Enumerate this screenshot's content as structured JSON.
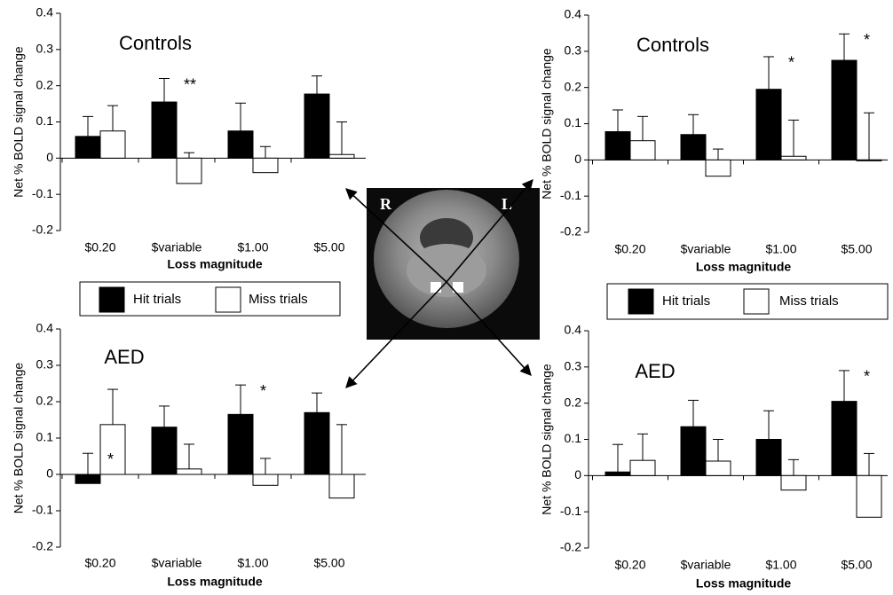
{
  "chart_data": [
    {
      "type": "bar",
      "title": "Controls",
      "x_label": "Loss magnitude",
      "y_label": "Net % BOLD signal change",
      "categories": [
        "$0.20",
        "$variable",
        "$1.00",
        "$5.00"
      ],
      "series": [
        {
          "name": "Hit trials",
          "color": "#000000",
          "values": [
            0.06,
            0.155,
            0.075,
            0.177
          ],
          "errors": [
            0.055,
            0.065,
            0.077,
            0.05
          ]
        },
        {
          "name": "Miss trials",
          "color": "#ffffff",
          "values": [
            0.075,
            -0.07,
            -0.04,
            0.01
          ],
          "errors": [
            0.07,
            0.015,
            0.032,
            0.09
          ]
        }
      ],
      "annotations": [
        {
          "text": "**",
          "category": "$variable"
        }
      ],
      "ylim": [
        -0.2,
        0.4
      ],
      "yticks": [
        -0.2,
        -0.1,
        0,
        0.1,
        0.2,
        0.3,
        0.4
      ]
    },
    {
      "type": "bar",
      "title": "Controls",
      "x_label": "Loss magnitude",
      "y_label": "Net % BOLD signal change",
      "categories": [
        "$0.20",
        "$variable",
        "$1.00",
        "$5.00"
      ],
      "series": [
        {
          "name": "Hit trials",
          "color": "#000000",
          "values": [
            0.078,
            0.07,
            0.195,
            0.275
          ],
          "errors": [
            0.06,
            0.055,
            0.09,
            0.073
          ]
        },
        {
          "name": "Miss trials",
          "color": "#ffffff",
          "values": [
            0.053,
            -0.045,
            0.01,
            0
          ],
          "errors": [
            0.067,
            0.03,
            0.1,
            0.13
          ]
        }
      ],
      "annotations": [
        {
          "text": "*",
          "category": "$1.00"
        },
        {
          "text": "*",
          "category": "$5.00"
        }
      ],
      "ylim": [
        -0.2,
        0.4
      ],
      "yticks": [
        -0.2,
        -0.1,
        0,
        0.1,
        0.2,
        0.3,
        0.4
      ]
    },
    {
      "type": "bar",
      "title": "AED",
      "x_label": "Loss magnitude",
      "y_label": "Net % BOLD signal change",
      "categories": [
        "$0.20",
        "$variable",
        "$1.00",
        "$5.00"
      ],
      "series": [
        {
          "name": "Hit trials",
          "color": "#000000",
          "values": [
            -0.025,
            0.13,
            0.165,
            0.17
          ],
          "errors": [
            0.058,
            0.058,
            0.081,
            0.054
          ]
        },
        {
          "name": "Miss trials",
          "color": "#ffffff",
          "values": [
            0.137,
            0.015,
            -0.03,
            -0.065
          ],
          "errors": [
            0.097,
            0.068,
            0.044,
            0.137
          ]
        }
      ],
      "annotations": [
        {
          "text": "*",
          "category": "$0.20"
        },
        {
          "text": "*",
          "category": "$1.00"
        }
      ],
      "ylim": [
        -0.2,
        0.4
      ],
      "yticks": [
        -0.2,
        -0.1,
        0,
        0.1,
        0.2,
        0.3,
        0.4
      ]
    },
    {
      "type": "bar",
      "title": "AED",
      "x_label": "Loss magnitude",
      "y_label": "Net % BOLD signal change",
      "categories": [
        "$0.20",
        "$variable",
        "$1.00",
        "$5.00"
      ],
      "series": [
        {
          "name": "Hit trials",
          "color": "#000000",
          "values": [
            0.01,
            0.135,
            0.1,
            0.205
          ],
          "errors": [
            0.076,
            0.073,
            0.079,
            0.085
          ]
        },
        {
          "name": "Miss trials",
          "color": "#ffffff",
          "values": [
            0.042,
            0.04,
            -0.04,
            -0.115
          ],
          "errors": [
            0.073,
            0.06,
            0.044,
            0.061
          ]
        }
      ],
      "annotations": [
        {
          "text": "*",
          "category": "$5.00"
        }
      ],
      "ylim": [
        -0.2,
        0.4
      ],
      "yticks": [
        -0.2,
        -0.1,
        0,
        0.1,
        0.2,
        0.3,
        0.4
      ]
    }
  ],
  "image_labels": {
    "left": "R",
    "right": "L"
  }
}
